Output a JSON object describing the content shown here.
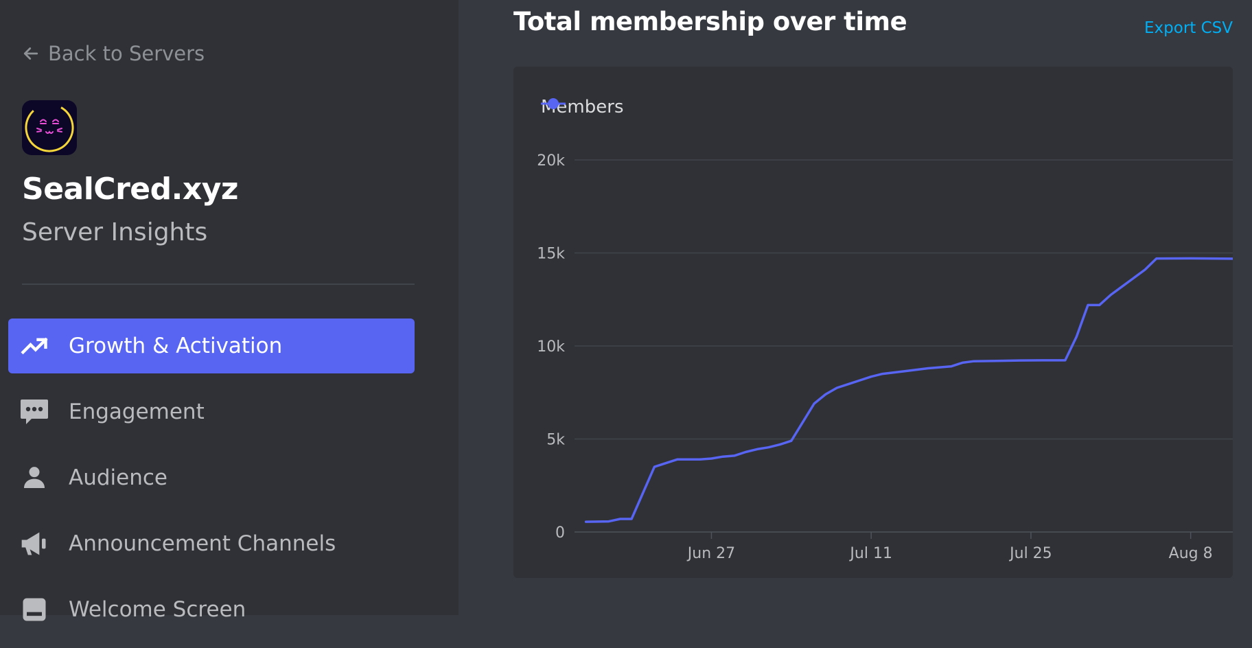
{
  "sidebar": {
    "back_label": "Back to Servers",
    "server_name": "SealCred.xyz",
    "server_subtitle": "Server Insights",
    "nav_items": [
      {
        "label": "Growth & Activation",
        "icon": "trending-up-icon",
        "active": true
      },
      {
        "label": "Engagement",
        "icon": "chat-bubble-icon",
        "active": false
      },
      {
        "label": "Audience",
        "icon": "person-icon",
        "active": false
      },
      {
        "label": "Announcement Channels",
        "icon": "megaphone-icon",
        "active": false
      },
      {
        "label": "Welcome Screen",
        "icon": "welcome-screen-icon",
        "active": false
      }
    ]
  },
  "main": {
    "title": "Total membership over time",
    "export_label": "Export CSV"
  },
  "colors": {
    "accent": "#5865f2",
    "link": "#00aff4",
    "sidebar_bg": "#2f3136",
    "main_bg": "#36393f"
  },
  "chart_data": {
    "type": "line",
    "legend": "top-left",
    "grid": true,
    "ylim": [
      0,
      20000
    ],
    "y_ticks": [
      {
        "value": 0,
        "label": "0"
      },
      {
        "value": 5000,
        "label": "5k"
      },
      {
        "value": 10000,
        "label": "10k"
      },
      {
        "value": 15000,
        "label": "15k"
      },
      {
        "value": 20000,
        "label": "20k"
      }
    ],
    "x_ticks": [
      "Jun 27",
      "Jul 11",
      "Jul 25",
      "Aug 8"
    ],
    "x_dates": [
      "2022-06-27",
      "2022-07-11",
      "2022-07-25",
      "2022-08-08"
    ],
    "series": [
      {
        "name": "Members",
        "color": "#5865f2",
        "points": [
          [
            "2022-06-16",
            550
          ],
          [
            "2022-06-18",
            570
          ],
          [
            "2022-06-19",
            700
          ],
          [
            "2022-06-20",
            700
          ],
          [
            "2022-06-22",
            3500
          ],
          [
            "2022-06-24",
            3900
          ],
          [
            "2022-06-26",
            3900
          ],
          [
            "2022-06-27",
            3950
          ],
          [
            "2022-06-28",
            4050
          ],
          [
            "2022-06-29",
            4100
          ],
          [
            "2022-06-30",
            4300
          ],
          [
            "2022-07-01",
            4450
          ],
          [
            "2022-07-02",
            4550
          ],
          [
            "2022-07-03",
            4700
          ],
          [
            "2022-07-04",
            4900
          ],
          [
            "2022-07-05",
            5900
          ],
          [
            "2022-07-06",
            6900
          ],
          [
            "2022-07-07",
            7400
          ],
          [
            "2022-07-08",
            7750
          ],
          [
            "2022-07-09",
            7950
          ],
          [
            "2022-07-10",
            8150
          ],
          [
            "2022-07-11",
            8350
          ],
          [
            "2022-07-12",
            8500
          ],
          [
            "2022-07-14",
            8650
          ],
          [
            "2022-07-16",
            8800
          ],
          [
            "2022-07-18",
            8900
          ],
          [
            "2022-07-19",
            9100
          ],
          [
            "2022-07-20",
            9180
          ],
          [
            "2022-07-22",
            9200
          ],
          [
            "2022-07-24",
            9220
          ],
          [
            "2022-07-26",
            9230
          ],
          [
            "2022-07-28",
            9230
          ],
          [
            "2022-07-29",
            10500
          ],
          [
            "2022-07-30",
            12200
          ],
          [
            "2022-07-31",
            12200
          ],
          [
            "2022-08-01",
            12750
          ],
          [
            "2022-08-02",
            13200
          ],
          [
            "2022-08-03",
            13650
          ],
          [
            "2022-08-04",
            14100
          ],
          [
            "2022-08-05",
            14700
          ],
          [
            "2022-08-08",
            14710
          ],
          [
            "2022-08-12",
            14690
          ],
          [
            "2022-08-14",
            14660
          ]
        ]
      }
    ]
  }
}
